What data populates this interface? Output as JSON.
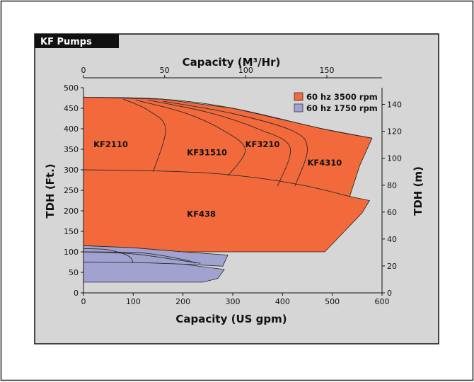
{
  "chart_data": {
    "type": "area",
    "title": "KF Pumps",
    "xlabel": "Capacity (US gpm)",
    "ylabel": "TDH (Ft.)",
    "x2label": "Capacity (M³/Hr)",
    "y2label": "TDH (m)",
    "xlim": [
      0,
      600
    ],
    "ylim": [
      0,
      500
    ],
    "x2lim": [
      0,
      184
    ],
    "y2lim": [
      0,
      152.4
    ],
    "x_ticks": [
      0,
      100,
      200,
      300,
      400,
      500,
      600
    ],
    "y_ticks": [
      0,
      50,
      100,
      150,
      200,
      250,
      300,
      350,
      400,
      450,
      500
    ],
    "x2_ticks": [
      0,
      50,
      100,
      150
    ],
    "y2_ticks": [
      0,
      20,
      40,
      60,
      80,
      100,
      120,
      140
    ],
    "legend": [
      {
        "label": "60 hz 3500 rpm",
        "color": "#f26a3c"
      },
      {
        "label": "60 hz 1750 rpm",
        "color": "#a2a2d0"
      }
    ],
    "legend_position": "top-right",
    "grid": false,
    "background": "#d6d6d6",
    "series": [
      {
        "name": "60 hz 3500 rpm",
        "color": "#f26a3c",
        "polygon": [
          [
            0,
            477
          ],
          [
            160,
            472
          ],
          [
            300,
            450
          ],
          [
            480,
            400
          ],
          [
            580,
            377
          ],
          [
            555,
            310
          ],
          [
            535,
            235
          ],
          [
            575,
            225
          ],
          [
            560,
            195
          ],
          [
            485,
            100
          ],
          [
            0,
            100
          ]
        ]
      },
      {
        "name": "60 hz 1750 rpm",
        "color": "#a2a2d0",
        "polygon": [
          [
            0,
            115
          ],
          [
            100,
            110
          ],
          [
            200,
            100
          ],
          [
            290,
            92
          ],
          [
            280,
            65
          ],
          [
            200,
            70
          ],
          [
            283,
            57
          ],
          [
            270,
            35
          ],
          [
            240,
            26
          ],
          [
            0,
            26
          ]
        ]
      }
    ],
    "curves": [
      {
        "points": [
          [
            0,
            477
          ],
          [
            160,
            472
          ],
          [
            300,
            450
          ],
          [
            480,
            400
          ],
          [
            580,
            377
          ]
        ]
      },
      {
        "points": [
          [
            80,
            472
          ],
          [
            130,
            445
          ],
          [
            165,
            400
          ],
          [
            140,
            295
          ]
        ]
      },
      {
        "points": [
          [
            105,
            470
          ],
          [
            200,
            440
          ],
          [
            275,
            400
          ],
          [
            325,
            350
          ],
          [
            290,
            285
          ]
        ]
      },
      {
        "points": [
          [
            130,
            470
          ],
          [
            250,
            440
          ],
          [
            350,
            400
          ],
          [
            415,
            355
          ],
          [
            390,
            260
          ]
        ]
      },
      {
        "points": [
          [
            160,
            467
          ],
          [
            300,
            437
          ],
          [
            420,
            395
          ],
          [
            450,
            350
          ],
          [
            425,
            260
          ]
        ]
      },
      {
        "points": [
          [
            0,
            300
          ],
          [
            150,
            297
          ],
          [
            250,
            292
          ],
          [
            350,
            280
          ],
          [
            450,
            260
          ],
          [
            535,
            235
          ]
        ]
      },
      {
        "points": [
          [
            0,
            108
          ],
          [
            50,
            105
          ],
          [
            90,
            90
          ],
          [
            100,
            73
          ]
        ]
      },
      {
        "points": [
          [
            0,
            100
          ],
          [
            100,
            95
          ],
          [
            190,
            80
          ],
          [
            235,
            72
          ]
        ]
      },
      {
        "points": [
          [
            0,
            75
          ],
          [
            100,
            74
          ],
          [
            200,
            70
          ]
        ]
      },
      {
        "points": [
          [
            0,
            100
          ],
          [
            120,
            97
          ],
          [
            205,
            80
          ],
          [
            225,
            72
          ]
        ]
      }
    ],
    "annotations": [
      {
        "text": "KF2110",
        "x": 20,
        "y": 355
      },
      {
        "text": "KF31510",
        "x": 208,
        "y": 335
      },
      {
        "text": "KF3210",
        "x": 325,
        "y": 355
      },
      {
        "text": "KF4310",
        "x": 450,
        "y": 310
      },
      {
        "text": "KF438",
        "x": 208,
        "y": 185
      }
    ]
  }
}
